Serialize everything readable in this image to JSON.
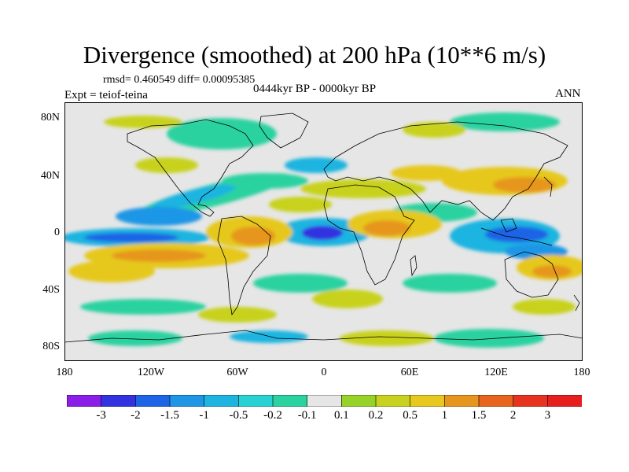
{
  "title": "Divergence (smoothed) at 200 hPa (10**6 m/s)",
  "stats": "rmsd= 0.460549 diff= 0.00095385",
  "experiment": "Expt = teiof-teina",
  "period": "0444kyr BP - 0000kyr BP",
  "season": "ANN",
  "y_ticks": [
    "80N",
    "40N",
    "0",
    "40S",
    "80S"
  ],
  "x_ticks": [
    "180",
    "120W",
    "60W",
    "0",
    "60E",
    "120E",
    "180"
  ],
  "colorbar": {
    "labels": [
      "-3",
      "-2",
      "-1.5",
      "-1",
      "-0.5",
      "-0.2",
      "-0.1",
      "0.1",
      "0.2",
      "0.5",
      "1",
      "1.5",
      "2",
      "3"
    ],
    "colors": [
      "#8a1ee8",
      "#3232e0",
      "#1e64e6",
      "#1e96e6",
      "#1eb4e0",
      "#28d2d2",
      "#2ad2a0",
      "#e6e6e6",
      "#96d228",
      "#c8d21e",
      "#e6c81e",
      "#e6961e",
      "#e6641e",
      "#e6321e",
      "#e61e1e"
    ]
  },
  "palette": {
    "zero": "#e6e6e6",
    "neg_weak": "#2ad2a0",
    "neg_mid": "#1eb4e0",
    "neg_strong": "#1e64e6",
    "neg_max": "#3232e0",
    "pos_weak": "#c8d21e",
    "pos_mid": "#e6c81e",
    "pos_strong": "#e6961e",
    "pos_max": "#e6641e"
  }
}
